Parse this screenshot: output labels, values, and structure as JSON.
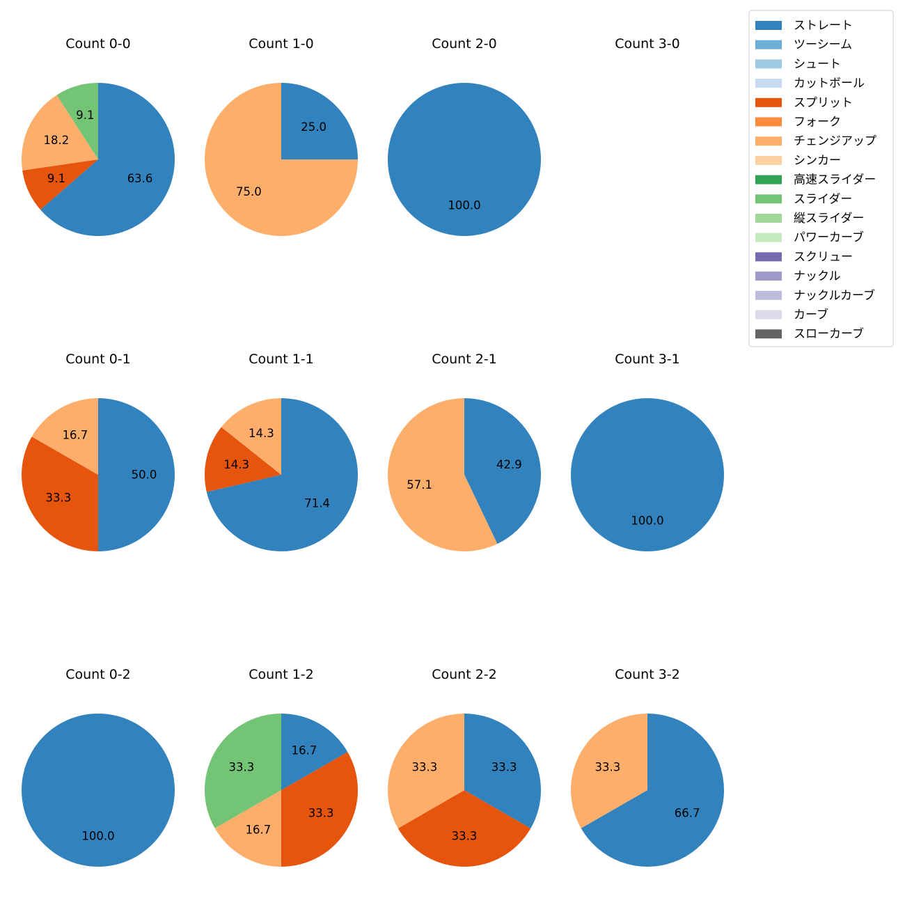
{
  "chart_data": {
    "type": "pie",
    "legend": {
      "placement": "top-right",
      "entries": [
        {
          "name": "ストレート",
          "color": "#3182bd"
        },
        {
          "name": "ツーシーム",
          "color": "#6baed6"
        },
        {
          "name": "シュート",
          "color": "#9ecae1"
        },
        {
          "name": "カットボール",
          "color": "#c6dbef"
        },
        {
          "name": "スプリット",
          "color": "#e6550d"
        },
        {
          "name": "フォーク",
          "color": "#fd8d3c"
        },
        {
          "name": "チェンジアップ",
          "color": "#fdae6b"
        },
        {
          "name": "シンカー",
          "color": "#fdd0a2"
        },
        {
          "name": "高速スライダー",
          "color": "#31a354"
        },
        {
          "name": "スライダー",
          "color": "#74c476"
        },
        {
          "name": "縦スライダー",
          "color": "#a1d99b"
        },
        {
          "name": "パワーカーブ",
          "color": "#c7e9c0"
        },
        {
          "name": "スクリュー",
          "color": "#756bb1"
        },
        {
          "name": "ナックル",
          "color": "#9e9ac8"
        },
        {
          "name": "ナックルカーブ",
          "color": "#bcbddc"
        },
        {
          "name": "カーブ",
          "color": "#dadaeb"
        },
        {
          "name": "スローカーブ",
          "color": "#636363"
        }
      ]
    },
    "charts": [
      {
        "title": "Count 0-0",
        "slices": [
          {
            "type": "ストレート",
            "value": 63.6
          },
          {
            "type": "スプリット",
            "value": 9.1
          },
          {
            "type": "チェンジアップ",
            "value": 18.2
          },
          {
            "type": "スライダー",
            "value": 9.1
          }
        ]
      },
      {
        "title": "Count 1-0",
        "slices": [
          {
            "type": "ストレート",
            "value": 25.0
          },
          {
            "type": "チェンジアップ",
            "value": 75.0
          }
        ]
      },
      {
        "title": "Count 2-0",
        "slices": [
          {
            "type": "ストレート",
            "value": 100.0
          }
        ]
      },
      {
        "title": "Count 3-0",
        "slices": []
      },
      {
        "title": "Count 0-1",
        "slices": [
          {
            "type": "ストレート",
            "value": 50.0
          },
          {
            "type": "スプリット",
            "value": 33.3
          },
          {
            "type": "チェンジアップ",
            "value": 16.7
          }
        ]
      },
      {
        "title": "Count 1-1",
        "slices": [
          {
            "type": "ストレート",
            "value": 71.4
          },
          {
            "type": "スプリット",
            "value": 14.3
          },
          {
            "type": "チェンジアップ",
            "value": 14.3
          }
        ]
      },
      {
        "title": "Count 2-1",
        "slices": [
          {
            "type": "ストレート",
            "value": 42.9
          },
          {
            "type": "チェンジアップ",
            "value": 57.1
          }
        ]
      },
      {
        "title": "Count 3-1",
        "slices": [
          {
            "type": "ストレート",
            "value": 100.0
          }
        ]
      },
      {
        "title": "Count 0-2",
        "slices": [
          {
            "type": "ストレート",
            "value": 100.0
          }
        ]
      },
      {
        "title": "Count 1-2",
        "slices": [
          {
            "type": "ストレート",
            "value": 16.7
          },
          {
            "type": "スプリット",
            "value": 33.3
          },
          {
            "type": "チェンジアップ",
            "value": 16.7
          },
          {
            "type": "スライダー",
            "value": 33.3
          }
        ]
      },
      {
        "title": "Count 2-2",
        "slices": [
          {
            "type": "ストレート",
            "value": 33.3
          },
          {
            "type": "スプリット",
            "value": 33.3
          },
          {
            "type": "チェンジアップ",
            "value": 33.3
          }
        ]
      },
      {
        "title": "Count 3-2",
        "slices": [
          {
            "type": "ストレート",
            "value": 66.7
          },
          {
            "type": "チェンジアップ",
            "value": 33.3
          }
        ]
      }
    ]
  }
}
